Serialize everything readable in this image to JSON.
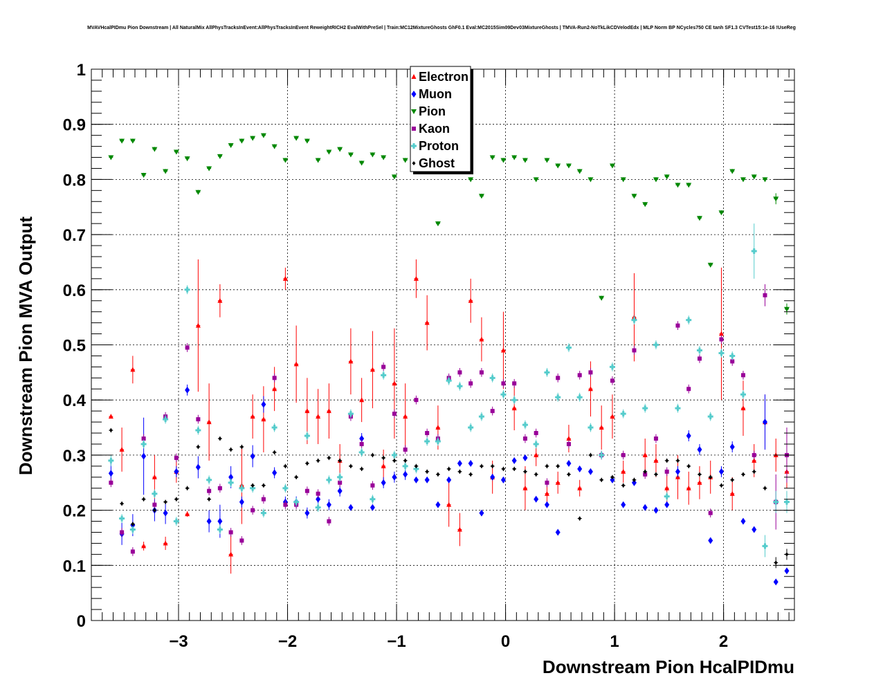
{
  "chart_data": {
    "type": "scatter",
    "title": "MVAVHcalPIDmu Pion Downstream | All NaturalMix AllPhysTracksInEvent:AllPhysTracksInEvent ReweightRICH2 EvalWithPreSel | Train:MC12MixtureGhosts GhF0.1 Eval:MC2015Sim09Dev03MixtureGhosts | TMVA-Run2-NoTkLikCDVelodEdx | MLP Norm BP NCycles750 CE tanh SF1.3 CVTest15:1e-16 !UseReg",
    "xlabel": "Downstream Pion HcalPIDmu",
    "ylabel": "Downstream Pion MVA Output",
    "xlim": [
      -3.8,
      2.65
    ],
    "ylim": [
      0,
      1
    ],
    "x_ticks": [
      -3,
      -2,
      -1,
      0,
      1,
      2
    ],
    "x_tick_labels": [
      "−3",
      "−2",
      "−1",
      "0",
      "1",
      "2"
    ],
    "y_ticks": [
      0,
      0.1,
      0.2,
      0.3,
      0.4,
      0.5,
      0.6,
      0.7,
      0.8,
      0.9,
      1
    ],
    "y_tick_labels": [
      "0",
      "0.1",
      "0.2",
      "0.3",
      "0.4",
      "0.5",
      "0.6",
      "0.7",
      "0.8",
      "0.9",
      "1"
    ],
    "grid": true,
    "legend_position": "top-center",
    "x": [
      -3.62,
      -3.52,
      -3.42,
      -3.32,
      -3.22,
      -3.12,
      -3.02,
      -2.92,
      -2.82,
      -2.72,
      -2.62,
      -2.52,
      -2.42,
      -2.32,
      -2.22,
      -2.12,
      -2.02,
      -1.92,
      -1.82,
      -1.72,
      -1.62,
      -1.52,
      -1.42,
      -1.32,
      -1.22,
      -1.12,
      -1.02,
      -0.92,
      -0.82,
      -0.72,
      -0.62,
      -0.52,
      -0.42,
      -0.32,
      -0.22,
      -0.12,
      -0.02,
      0.08,
      0.18,
      0.28,
      0.38,
      0.48,
      0.58,
      0.68,
      0.78,
      0.88,
      0.98,
      1.08,
      1.18,
      1.28,
      1.38,
      1.48,
      1.58,
      1.68,
      1.78,
      1.88,
      1.98,
      2.08,
      2.18,
      2.28,
      2.38,
      2.48,
      2.58
    ],
    "series": [
      {
        "name": "Electron",
        "color": "#ff0000",
        "marker": "triangle-up",
        "values": [
          0.37,
          0.31,
          0.455,
          0.135,
          0.26,
          0.14,
          0.27,
          0.193,
          0.535,
          0.36,
          0.58,
          0.12,
          0.245,
          0.37,
          0.365,
          0.42,
          0.62,
          0.465,
          0.38,
          0.37,
          0.38,
          0.29,
          0.47,
          0.4,
          0.455,
          0.28,
          0.43,
          0.37,
          0.62,
          0.54,
          0.35,
          0.21,
          0.165,
          0.58,
          0.51,
          0.26,
          0.49,
          0.385,
          0.24,
          0.3,
          0.23,
          0.25,
          0.33,
          0.24,
          0.42,
          0.35,
          0.37,
          0.27,
          0.55,
          0.3,
          0.29,
          0.24,
          0.26,
          0.24,
          0.25,
          0.26,
          0.52,
          0.23,
          0.385,
          0.29,
          0.36,
          0.3,
          0.27
        ],
        "errors": [
          0.003,
          0.04,
          0.025,
          0.008,
          0.04,
          0.012,
          0.02,
          0.005,
          0.12,
          0.07,
          0.03,
          0.035,
          0.07,
          0.04,
          0.06,
          0.04,
          0.02,
          0.07,
          0.06,
          0.05,
          0.05,
          0.03,
          0.06,
          0.04,
          0.07,
          0.03,
          0.1,
          0.06,
          0.035,
          0.05,
          0.04,
          0.04,
          0.03,
          0.04,
          0.04,
          0.03,
          0.07,
          0.04,
          0.04,
          0.02,
          0.02,
          0.02,
          0.025,
          0.015,
          0.05,
          0.04,
          0.04,
          0.02,
          0.08,
          0.03,
          0.03,
          0.03,
          0.04,
          0.03,
          0.03,
          0.03,
          0.12,
          0.03,
          0.05,
          0.03,
          0.05,
          0.03,
          0.03
        ]
      },
      {
        "name": "Muon",
        "color": "#0000ff",
        "marker": "diamond",
        "values": [
          0.267,
          0.157,
          0.173,
          0.298,
          0.2,
          0.195,
          0.27,
          0.418,
          0.278,
          0.18,
          0.18,
          0.26,
          0.215,
          0.298,
          0.392,
          0.268,
          0.215,
          0.215,
          0.195,
          0.22,
          0.21,
          0.235,
          0.205,
          0.33,
          0.205,
          0.25,
          0.26,
          0.265,
          0.255,
          0.255,
          0.21,
          0.255,
          0.285,
          0.285,
          0.195,
          0.26,
          0.255,
          0.29,
          0.295,
          0.22,
          0.21,
          0.16,
          0.285,
          0.275,
          0.27,
          0.3,
          0.255,
          0.21,
          0.25,
          0.205,
          0.2,
          0.21,
          0.27,
          0.335,
          0.31,
          0.145,
          0.27,
          0.315,
          0.18,
          0.165,
          0.36,
          0.07,
          0.09
        ],
        "errors": [
          0.02,
          0.02,
          0.02,
          0.07,
          0.02,
          0.02,
          0.01,
          0.01,
          0.02,
          0.02,
          0.03,
          0.02,
          0.01,
          0.02,
          0.015,
          0.01,
          0.01,
          0.01,
          0.01,
          0.01,
          0.01,
          0.01,
          0.005,
          0.01,
          0.005,
          0.01,
          0.01,
          0.01,
          0.005,
          0.005,
          0.005,
          0.005,
          0.005,
          0.005,
          0.005,
          0.005,
          0.005,
          0.005,
          0.005,
          0.005,
          0.005,
          0.005,
          0.005,
          0.005,
          0.005,
          0.005,
          0.005,
          0.005,
          0.005,
          0.005,
          0.005,
          0.005,
          0.01,
          0.01,
          0.01,
          0.005,
          0.01,
          0.01,
          0.005,
          0.005,
          0.05,
          0.005,
          0.005
        ]
      },
      {
        "name": "Pion",
        "color": "#008800",
        "marker": "triangle-down",
        "values": [
          0.84,
          0.87,
          0.87,
          0.808,
          0.855,
          0.815,
          0.85,
          0.838,
          0.777,
          0.82,
          0.842,
          0.862,
          0.87,
          0.875,
          0.88,
          0.86,
          0.835,
          0.875,
          0.87,
          0.835,
          0.85,
          0.855,
          0.845,
          0.83,
          0.845,
          0.84,
          0.805,
          0.835,
          0.845,
          0.84,
          0.72,
          0.83,
          0.815,
          0.8,
          0.77,
          0.84,
          0.835,
          0.84,
          0.835,
          0.8,
          0.835,
          0.825,
          0.825,
          0.815,
          0.8,
          0.585,
          0.825,
          0.8,
          0.77,
          0.755,
          0.8,
          0.805,
          0.79,
          0.79,
          0.73,
          0.645,
          0.74,
          0.815,
          0.8,
          0.805,
          0.8,
          0.765,
          0.565
        ],
        "errors": [
          0.004,
          0.004,
          0.004,
          0.004,
          0.004,
          0.004,
          0.004,
          0.004,
          0.004,
          0.004,
          0.004,
          0.004,
          0.004,
          0.004,
          0.004,
          0.004,
          0.004,
          0.004,
          0.004,
          0.004,
          0.004,
          0.004,
          0.004,
          0.004,
          0.004,
          0.004,
          0.004,
          0.004,
          0.004,
          0.004,
          0.004,
          0.004,
          0.004,
          0.004,
          0.004,
          0.004,
          0.004,
          0.004,
          0.004,
          0.004,
          0.004,
          0.004,
          0.004,
          0.004,
          0.004,
          0.004,
          0.004,
          0.004,
          0.004,
          0.004,
          0.004,
          0.004,
          0.004,
          0.004,
          0.004,
          0.004,
          0.004,
          0.004,
          0.004,
          0.004,
          0.004,
          0.01,
          0.01
        ]
      },
      {
        "name": "Kaon",
        "color": "#990099",
        "marker": "square",
        "values": [
          0.25,
          0.16,
          0.125,
          0.33,
          0.21,
          0.37,
          0.295,
          0.495,
          0.365,
          0.235,
          0.24,
          0.16,
          0.145,
          0.2,
          0.22,
          0.44,
          0.21,
          0.21,
          0.235,
          0.23,
          0.18,
          0.25,
          0.37,
          0.32,
          0.245,
          0.46,
          0.375,
          0.31,
          0.4,
          0.34,
          0.33,
          0.44,
          0.45,
          0.43,
          0.45,
          0.38,
          0.43,
          0.43,
          0.33,
          0.34,
          0.25,
          0.44,
          0.32,
          0.445,
          0.45,
          0.3,
          0.435,
          0.3,
          0.49,
          0.265,
          0.33,
          0.27,
          0.535,
          0.42,
          0.475,
          0.195,
          0.51,
          0.47,
          0.445,
          0.3,
          0.59,
          0.215,
          0.3
        ],
        "errors": [
          0.008,
          0.008,
          0.008,
          0.008,
          0.008,
          0.008,
          0.008,
          0.008,
          0.008,
          0.008,
          0.008,
          0.008,
          0.008,
          0.008,
          0.008,
          0.008,
          0.008,
          0.008,
          0.008,
          0.008,
          0.008,
          0.008,
          0.008,
          0.008,
          0.008,
          0.008,
          0.008,
          0.008,
          0.008,
          0.008,
          0.008,
          0.008,
          0.008,
          0.008,
          0.008,
          0.008,
          0.008,
          0.008,
          0.008,
          0.008,
          0.008,
          0.008,
          0.008,
          0.008,
          0.008,
          0.008,
          0.008,
          0.008,
          0.008,
          0.008,
          0.008,
          0.008,
          0.008,
          0.008,
          0.008,
          0.008,
          0.008,
          0.008,
          0.008,
          0.008,
          0.02,
          0.05,
          0.05
        ]
      },
      {
        "name": "Proton",
        "color": "#55cccc",
        "marker": "plus",
        "values": [
          0.29,
          0.185,
          0.165,
          0.32,
          0.23,
          0.365,
          0.18,
          0.6,
          0.345,
          0.255,
          0.165,
          0.25,
          0.24,
          0.24,
          0.195,
          0.35,
          0.24,
          0.215,
          0.335,
          0.205,
          0.255,
          0.26,
          0.375,
          0.305,
          0.22,
          0.445,
          0.3,
          0.28,
          0.275,
          0.325,
          0.325,
          0.435,
          0.425,
          0.35,
          0.37,
          0.44,
          0.41,
          0.4,
          0.355,
          0.32,
          0.45,
          0.405,
          0.495,
          0.405,
          0.35,
          0.3,
          0.46,
          0.375,
          0.545,
          0.385,
          0.5,
          0.225,
          0.385,
          0.545,
          0.49,
          0.37,
          0.485,
          0.48,
          0.41,
          0.67,
          0.135,
          0.215,
          0.215
        ],
        "errors": [
          0.01,
          0.008,
          0.008,
          0.008,
          0.008,
          0.008,
          0.008,
          0.008,
          0.008,
          0.008,
          0.008,
          0.008,
          0.008,
          0.008,
          0.008,
          0.008,
          0.008,
          0.008,
          0.008,
          0.008,
          0.008,
          0.008,
          0.008,
          0.008,
          0.008,
          0.008,
          0.008,
          0.008,
          0.008,
          0.008,
          0.008,
          0.008,
          0.008,
          0.008,
          0.008,
          0.008,
          0.008,
          0.008,
          0.008,
          0.008,
          0.008,
          0.008,
          0.008,
          0.008,
          0.008,
          0.008,
          0.008,
          0.008,
          0.008,
          0.008,
          0.008,
          0.008,
          0.008,
          0.008,
          0.008,
          0.008,
          0.008,
          0.008,
          0.008,
          0.05,
          0.02,
          0.02,
          0.02
        ]
      },
      {
        "name": "Ghost",
        "color": "#000000",
        "marker": "diamond-small",
        "values": [
          0.345,
          0.212,
          0.175,
          0.22,
          0.2,
          0.215,
          0.22,
          0.24,
          0.315,
          0.22,
          0.33,
          0.31,
          0.315,
          0.245,
          0.245,
          0.305,
          0.28,
          0.26,
          0.285,
          0.29,
          0.295,
          0.29,
          0.28,
          0.275,
          0.3,
          0.295,
          0.29,
          0.29,
          0.28,
          0.27,
          0.265,
          0.275,
          0.27,
          0.265,
          0.28,
          0.28,
          0.275,
          0.275,
          0.27,
          0.265,
          0.28,
          0.28,
          0.265,
          0.185,
          0.3,
          0.255,
          0.26,
          0.245,
          0.255,
          0.27,
          0.265,
          0.29,
          0.29,
          0.28,
          0.265,
          0.26,
          0.245,
          0.255,
          0.265,
          0.27,
          0.24,
          0.105,
          0.12
        ],
        "errors": [
          0.004,
          0.004,
          0.004,
          0.004,
          0.004,
          0.004,
          0.004,
          0.004,
          0.004,
          0.004,
          0.004,
          0.004,
          0.004,
          0.004,
          0.004,
          0.004,
          0.004,
          0.004,
          0.004,
          0.004,
          0.004,
          0.004,
          0.004,
          0.004,
          0.004,
          0.004,
          0.004,
          0.004,
          0.004,
          0.004,
          0.004,
          0.004,
          0.004,
          0.004,
          0.004,
          0.004,
          0.004,
          0.004,
          0.004,
          0.004,
          0.004,
          0.004,
          0.004,
          0.004,
          0.004,
          0.004,
          0.004,
          0.004,
          0.004,
          0.004,
          0.004,
          0.004,
          0.004,
          0.004,
          0.004,
          0.004,
          0.004,
          0.004,
          0.004,
          0.004,
          0.004,
          0.01,
          0.01
        ]
      }
    ]
  }
}
